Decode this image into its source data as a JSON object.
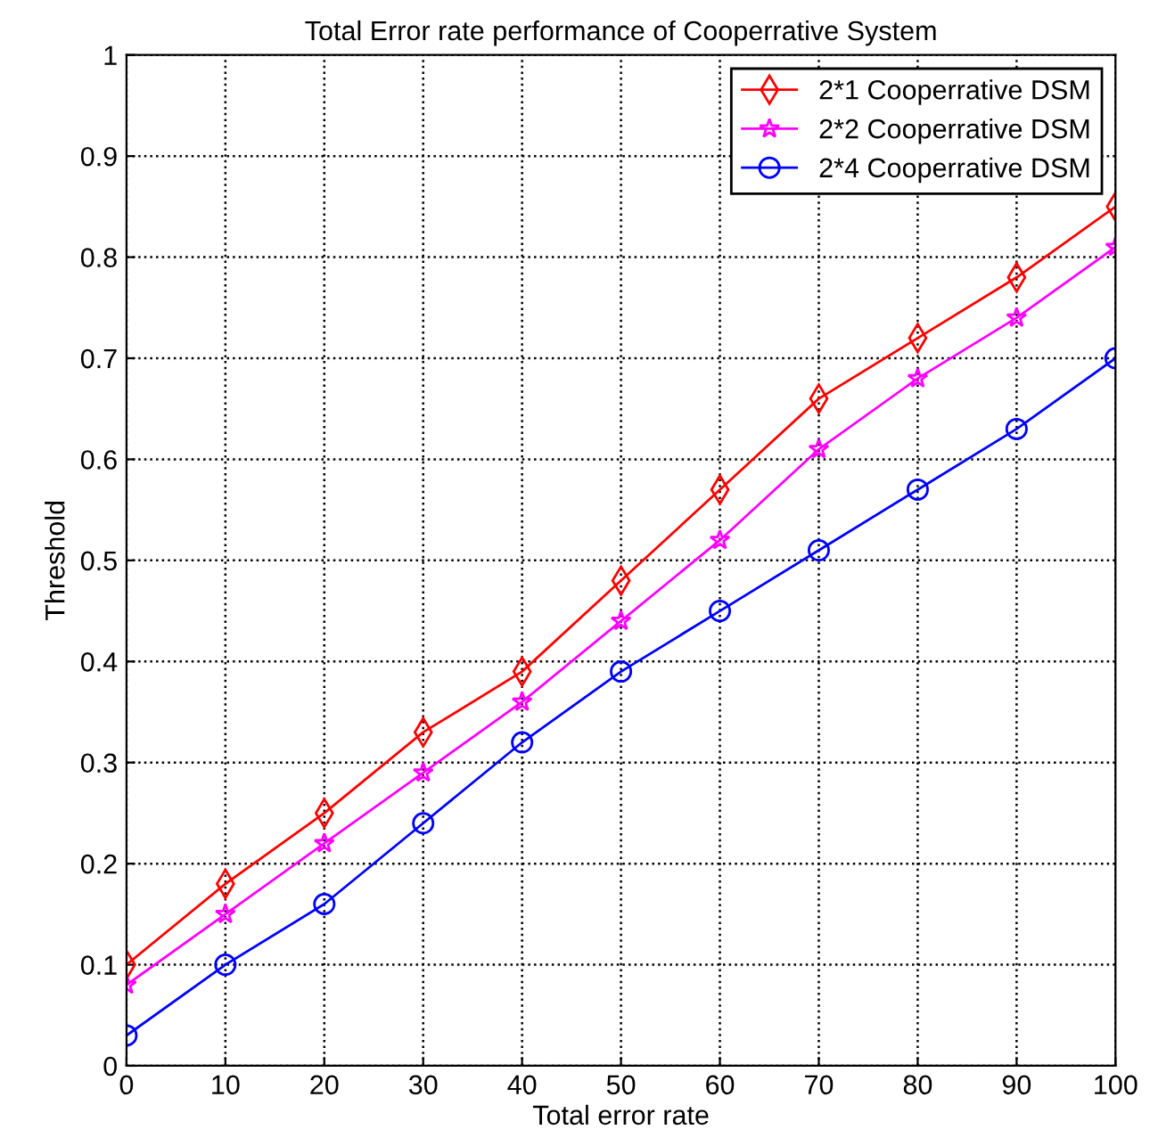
{
  "chart_data": {
    "type": "line",
    "title": "Total Error rate performance of Cooperrative System",
    "xlabel": "Total error rate",
    "ylabel": "Threshold",
    "x": [
      0,
      10,
      20,
      30,
      40,
      50,
      60,
      70,
      80,
      90,
      100
    ],
    "series": [
      {
        "name": "2*1 Cooperrative DSM",
        "color": "#ff0000",
        "marker": "diamond",
        "values": [
          0.1,
          0.18,
          0.25,
          0.33,
          0.39,
          0.48,
          0.57,
          0.66,
          0.72,
          0.78,
          0.85
        ]
      },
      {
        "name": "2*2 Cooperrative DSM",
        "color": "#ff00ff",
        "marker": "star",
        "values": [
          0.08,
          0.15,
          0.22,
          0.29,
          0.36,
          0.44,
          0.52,
          0.61,
          0.68,
          0.74,
          0.81
        ]
      },
      {
        "name": "2*4 Cooperrative DSM",
        "color": "#0000ff",
        "marker": "circle",
        "values": [
          0.03,
          0.1,
          0.16,
          0.24,
          0.32,
          0.39,
          0.45,
          0.51,
          0.57,
          0.63,
          0.7
        ]
      }
    ],
    "xlim": [
      0,
      100
    ],
    "xticks": [
      0,
      10,
      20,
      30,
      40,
      50,
      60,
      70,
      80,
      90,
      100
    ],
    "ylim": [
      0,
      1
    ],
    "yticks": [
      0,
      0.1,
      0.2,
      0.3,
      0.4,
      0.5,
      0.6,
      0.7,
      0.8,
      0.9,
      1
    ],
    "grid": true,
    "legend": "top right",
    "line_style": "solid"
  }
}
